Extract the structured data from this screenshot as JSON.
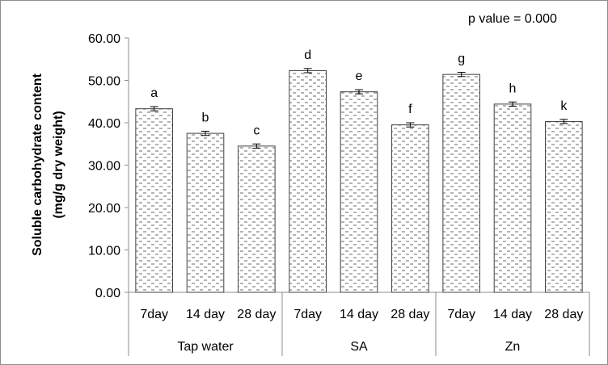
{
  "chart_data": {
    "type": "bar",
    "annotation": "p value = 0.000",
    "ylabel_lines": [
      "Soluble carbohydrate content",
      "(mg/g dry weight)"
    ],
    "ylim": [
      0,
      60
    ],
    "yticks": [
      "0.00",
      "10.00",
      "20.00",
      "30.00",
      "40.00",
      "50.00",
      "60.00"
    ],
    "groups": [
      {
        "name": "Tap water",
        "bars": [
          {
            "category": "7day",
            "value": 43.3,
            "error": 0.5,
            "label": "a"
          },
          {
            "category": "14 day",
            "value": 37.5,
            "error": 0.5,
            "label": "b"
          },
          {
            "category": "28 day",
            "value": 34.5,
            "error": 0.5,
            "label": "c"
          }
        ]
      },
      {
        "name": "SA",
        "bars": [
          {
            "category": "7day",
            "value": 52.3,
            "error": 0.5,
            "label": "d"
          },
          {
            "category": "14 day",
            "value": 47.3,
            "error": 0.5,
            "label": "e"
          },
          {
            "category": "28 day",
            "value": 39.5,
            "error": 0.5,
            "label": "f"
          }
        ]
      },
      {
        "name": "Zn",
        "bars": [
          {
            "category": "7day",
            "value": 51.4,
            "error": 0.5,
            "label": "g"
          },
          {
            "category": "14 day",
            "value": 44.4,
            "error": 0.5,
            "label": "h"
          },
          {
            "category": "28 day",
            "value": 40.3,
            "error": 0.5,
            "label": "k"
          }
        ]
      }
    ],
    "bar_fill": "#d9d9d9",
    "bar_border": "#404040",
    "axis_color": "#8c8c8c"
  }
}
